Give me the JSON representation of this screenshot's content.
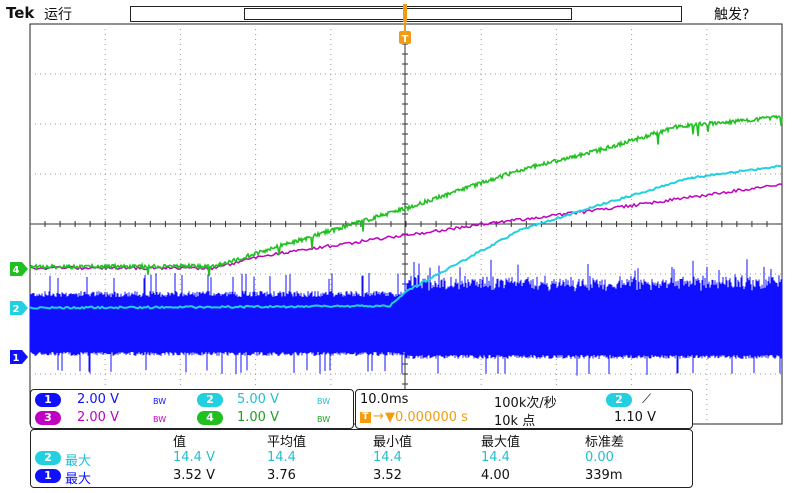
{
  "header": {
    "brand": "Tek",
    "run_state": "运行",
    "trigger_state": "触发?",
    "trigger_marker": "T"
  },
  "colors": {
    "ch1": "#1010ff",
    "ch2": "#22d0e0",
    "ch3": "#c000c0",
    "ch4": "#20c020",
    "trigger": "#f39c12",
    "grid": "#9a9a9a"
  },
  "channel_markers": {
    "ch4": "4",
    "ch2": "2",
    "ch1": "1"
  },
  "channels": [
    {
      "num": "1",
      "scale": "2.00 V",
      "bw": "BW"
    },
    {
      "num": "2",
      "scale": "5.00 V",
      "bw": "BW"
    },
    {
      "num": "3",
      "scale": "2.00 V",
      "bw": "BW"
    },
    {
      "num": "4",
      "scale": "1.00 V",
      "bw": "BW"
    }
  ],
  "timebase": {
    "scale": "10.0ms",
    "sample_rate": "100k次/秒",
    "position": "▼0.000000 s",
    "record_length": "10k 点",
    "trigger_source": "2",
    "trigger_slope": "⟋",
    "trigger_level": "1.10 V"
  },
  "measurements": {
    "headers": [
      "值",
      "平均值",
      "最小值",
      "最大值",
      "标准差"
    ],
    "rows": [
      {
        "ch": "2",
        "type": "最大",
        "value": "14.4 V",
        "mean": "14.4",
        "min": "14.4",
        "max": "14.4",
        "std": "0.00"
      },
      {
        "ch": "1",
        "type": "最大",
        "value": "3.52 V",
        "mean": "3.76",
        "min": "3.52",
        "max": "4.00",
        "std": "339m"
      }
    ]
  }
}
